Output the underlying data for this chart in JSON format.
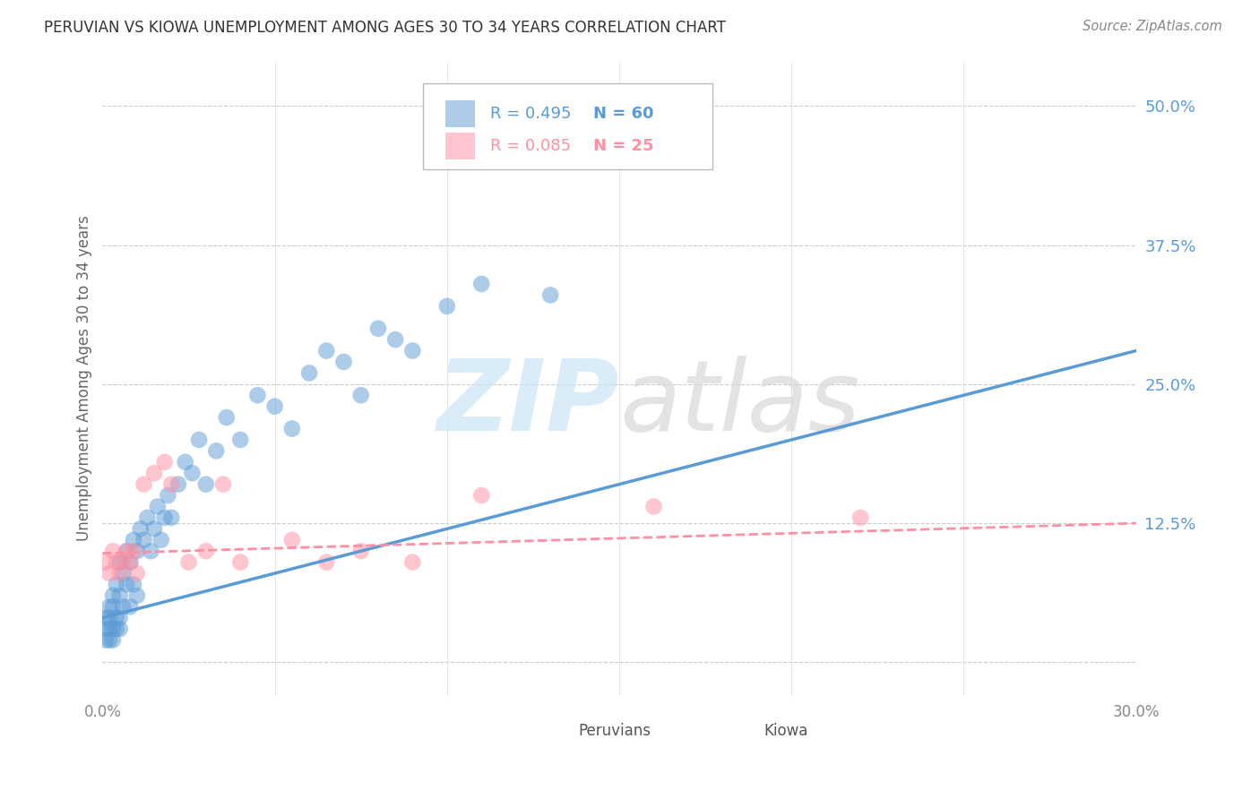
{
  "title": "PERUVIAN VS KIOWA UNEMPLOYMENT AMONG AGES 30 TO 34 YEARS CORRELATION CHART",
  "source": "Source: ZipAtlas.com",
  "ylabel": "Unemployment Among Ages 30 to 34 years",
  "xlim": [
    0.0,
    0.3
  ],
  "ylim": [
    -0.03,
    0.54
  ],
  "yticks": [
    0.0,
    0.125,
    0.25,
    0.375,
    0.5
  ],
  "ytick_labels": [
    "",
    "12.5%",
    "25.0%",
    "37.5%",
    "50.0%"
  ],
  "xticks": [
    0.0,
    0.05,
    0.1,
    0.15,
    0.2,
    0.25,
    0.3
  ],
  "xtick_labels": [
    "0.0%",
    "",
    "",
    "",
    "",
    "",
    "30.0%"
  ],
  "blue_color": "#5B9BD5",
  "pink_color": "#FF8FA3",
  "background_color": "#FFFFFF",
  "legend_R_blue": "R = 0.495",
  "legend_N_blue": "N = 60",
  "legend_R_pink": "R = 0.085",
  "legend_N_pink": "N = 25",
  "peruvian_x": [
    0.001,
    0.001,
    0.001,
    0.002,
    0.002,
    0.002,
    0.002,
    0.003,
    0.003,
    0.003,
    0.003,
    0.004,
    0.004,
    0.004,
    0.005,
    0.005,
    0.005,
    0.005,
    0.006,
    0.006,
    0.007,
    0.007,
    0.008,
    0.008,
    0.009,
    0.009,
    0.01,
    0.01,
    0.011,
    0.012,
    0.013,
    0.014,
    0.015,
    0.016,
    0.017,
    0.018,
    0.019,
    0.02,
    0.022,
    0.024,
    0.026,
    0.028,
    0.03,
    0.033,
    0.036,
    0.04,
    0.045,
    0.05,
    0.055,
    0.06,
    0.065,
    0.07,
    0.075,
    0.08,
    0.085,
    0.09,
    0.1,
    0.11,
    0.13,
    0.17
  ],
  "peruvian_y": [
    0.02,
    0.03,
    0.04,
    0.02,
    0.03,
    0.04,
    0.05,
    0.02,
    0.03,
    0.05,
    0.06,
    0.03,
    0.04,
    0.07,
    0.03,
    0.04,
    0.06,
    0.09,
    0.05,
    0.08,
    0.07,
    0.1,
    0.05,
    0.09,
    0.07,
    0.11,
    0.06,
    0.1,
    0.12,
    0.11,
    0.13,
    0.1,
    0.12,
    0.14,
    0.11,
    0.13,
    0.15,
    0.13,
    0.16,
    0.18,
    0.17,
    0.2,
    0.16,
    0.19,
    0.22,
    0.2,
    0.24,
    0.23,
    0.21,
    0.26,
    0.28,
    0.27,
    0.24,
    0.3,
    0.29,
    0.28,
    0.32,
    0.34,
    0.33,
    0.46
  ],
  "kiowa_x": [
    0.001,
    0.002,
    0.003,
    0.004,
    0.005,
    0.006,
    0.007,
    0.008,
    0.009,
    0.01,
    0.012,
    0.015,
    0.018,
    0.02,
    0.025,
    0.03,
    0.035,
    0.04,
    0.055,
    0.065,
    0.075,
    0.09,
    0.11,
    0.16,
    0.22
  ],
  "kiowa_y": [
    0.09,
    0.08,
    0.1,
    0.09,
    0.08,
    0.09,
    0.1,
    0.09,
    0.1,
    0.08,
    0.16,
    0.17,
    0.18,
    0.16,
    0.09,
    0.1,
    0.16,
    0.09,
    0.11,
    0.09,
    0.1,
    0.09,
    0.15,
    0.14,
    0.13
  ],
  "blue_trend_x": [
    0.0,
    0.3
  ],
  "blue_trend_y": [
    0.04,
    0.28
  ],
  "pink_trend_x": [
    0.0,
    0.3
  ],
  "pink_trend_y": [
    0.098,
    0.125
  ]
}
